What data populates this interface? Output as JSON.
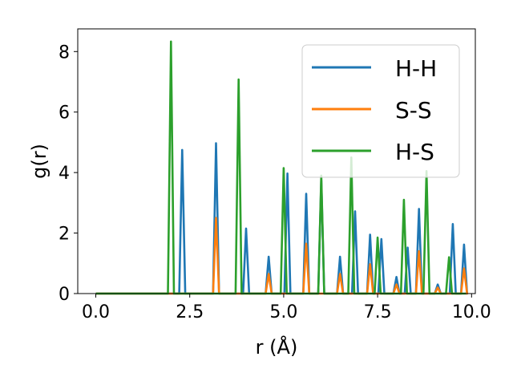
{
  "chart_data": {
    "type": "line",
    "xlabel": "r (Å)",
    "ylabel": "g(r)",
    "xlim": [
      -0.48,
      10.1
    ],
    "ylim": [
      0,
      8.75
    ],
    "xticks": [
      0.0,
      2.5,
      5.0,
      7.5,
      10.0
    ],
    "xtick_labels": [
      "0.0",
      "2.5",
      "5.0",
      "7.5",
      "10.0"
    ],
    "yticks": [
      0,
      2,
      4,
      6,
      8
    ],
    "ytick_labels": [
      "0",
      "2",
      "4",
      "6",
      "8"
    ],
    "grid": false,
    "legend_position": "top-right",
    "series": [
      {
        "name": "H-H",
        "color": "#1f77b4",
        "peaks": [
          [
            2.3,
            4.75
          ],
          [
            3.2,
            4.97
          ],
          [
            4.0,
            2.15
          ],
          [
            4.6,
            1.22
          ],
          [
            5.1,
            3.97
          ],
          [
            5.6,
            3.3
          ],
          [
            6.0,
            3.75
          ],
          [
            6.5,
            1.22
          ],
          [
            6.9,
            2.72
          ],
          [
            7.3,
            1.95
          ],
          [
            7.6,
            1.8
          ],
          [
            8.0,
            0.55
          ],
          [
            8.3,
            1.52
          ],
          [
            8.6,
            2.8
          ],
          [
            9.1,
            0.3
          ],
          [
            9.5,
            2.3
          ],
          [
            9.8,
            1.62
          ]
        ]
      },
      {
        "name": "S-S",
        "color": "#ff7f0e",
        "peaks": [
          [
            3.2,
            2.5
          ],
          [
            4.6,
            0.65
          ],
          [
            5.6,
            1.65
          ],
          [
            6.5,
            0.65
          ],
          [
            7.3,
            0.97
          ],
          [
            8.0,
            0.3
          ],
          [
            8.6,
            1.4
          ],
          [
            9.1,
            0.2
          ],
          [
            9.8,
            0.83
          ]
        ]
      },
      {
        "name": "H-S",
        "color": "#2ca02c",
        "peaks": [
          [
            2.0,
            8.33
          ],
          [
            3.8,
            7.08
          ],
          [
            5.0,
            4.15
          ],
          [
            6.0,
            3.9
          ],
          [
            6.8,
            4.5
          ],
          [
            7.5,
            1.85
          ],
          [
            8.2,
            3.1
          ],
          [
            8.8,
            4.05
          ],
          [
            9.4,
            1.2
          ]
        ]
      }
    ]
  }
}
